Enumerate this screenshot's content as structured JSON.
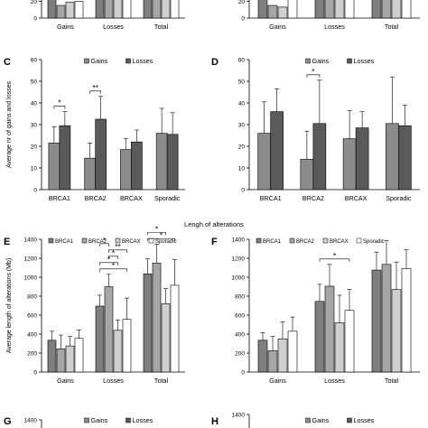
{
  "figure": {
    "section_title": "Lengh of alterations",
    "colors": {
      "brca1": "#7f7f7f",
      "brca2": "#a6a6a6",
      "brcax": "#cfcfcf",
      "sporadic": "#ffffff",
      "gains": "#8c8c8c",
      "losses": "#5a5a5a",
      "axis": "#000000"
    }
  },
  "chart_data": [
    {
      "panel": "top-left-partial",
      "type": "bar",
      "categories": [
        "Gains",
        "Losses",
        "Total"
      ],
      "yticks": [
        0,
        20
      ],
      "ylim": [
        0,
        30
      ],
      "series": [
        {
          "values": [
            22,
            30,
            30
          ]
        },
        {
          "values": [
            15,
            30,
            30
          ]
        },
        {
          "values": [
            19,
            30,
            30
          ]
        },
        {
          "values": [
            20,
            30,
            30
          ]
        }
      ]
    },
    {
      "panel": "top-right-partial",
      "type": "bar",
      "categories": [
        "Gains",
        "Losses",
        "Total"
      ],
      "yticks": [
        0,
        20
      ],
      "ylim": [
        0,
        30
      ],
      "series": [
        {
          "values": [
            30,
            30,
            30
          ]
        },
        {
          "values": [
            15,
            30,
            30
          ]
        },
        {
          "values": [
            13,
            30,
            30
          ]
        },
        {
          "values": [
            30,
            30,
            30
          ]
        }
      ]
    },
    {
      "panel": "C",
      "label": "C",
      "type": "bar",
      "categories": [
        "BRCA1",
        "BRCA2",
        "BRCAX",
        "Sporadic"
      ],
      "ylabel": "Average nr of gains and losses",
      "ylim": [
        0,
        60
      ],
      "yticks": [
        0,
        10,
        20,
        30,
        40,
        50,
        60
      ],
      "legend": [
        "Gains",
        "Losses"
      ],
      "legend_position": "top",
      "series": [
        {
          "name": "Gains",
          "values": [
            21.5,
            14.5,
            18.5,
            26
          ],
          "errors": [
            7.5,
            7,
            5,
            11.5
          ]
        },
        {
          "name": "Losses",
          "values": [
            29.5,
            32.5,
            22,
            25.5
          ],
          "errors": [
            6.5,
            10.5,
            5.5,
            10
          ]
        }
      ],
      "annotations": [
        {
          "category": 0,
          "text": "*"
        },
        {
          "category": 1,
          "text": "**"
        }
      ]
    },
    {
      "panel": "D",
      "label": "D",
      "type": "bar",
      "categories": [
        "BRCA1",
        "BRCA2",
        "BRCAX",
        "Sporadic"
      ],
      "ylim": [
        0,
        60
      ],
      "yticks": [
        0,
        10,
        20,
        30,
        40,
        50,
        60
      ],
      "legend": [
        "Gains",
        "Losses"
      ],
      "legend_position": "top",
      "series": [
        {
          "name": "Gains",
          "values": [
            26,
            14,
            23.5,
            30.5
          ],
          "errors": [
            14.5,
            13,
            13,
            21.5
          ]
        },
        {
          "name": "Losses",
          "values": [
            36,
            30.5,
            28.5,
            29.5
          ],
          "errors": [
            10.5,
            20,
            7.5,
            9.5
          ]
        }
      ],
      "annotations": [
        {
          "category": 1,
          "text": "*"
        }
      ]
    },
    {
      "panel": "E",
      "label": "E",
      "type": "bar",
      "categories": [
        "Gains",
        "Losses",
        "Total"
      ],
      "ylabel": "Average length of alterations (Mb)",
      "ylim": [
        0,
        1400
      ],
      "yticks": [
        0,
        200,
        400,
        600,
        800,
        1000,
        1200,
        1400
      ],
      "legend": [
        "BRCA1",
        "BRCA2",
        "BRCAX",
        "Sporadic"
      ],
      "legend_position": "top",
      "series": [
        {
          "name": "BRCA1",
          "values": [
            335,
            695,
            1035
          ],
          "errors": [
            95,
            115,
            160
          ]
        },
        {
          "name": "BRCA2",
          "values": [
            245,
            900,
            1150
          ],
          "errors": [
            145,
            130,
            200
          ]
        },
        {
          "name": "BRCAX",
          "values": [
            275,
            440,
            720
          ],
          "errors": [
            100,
            110,
            160
          ]
        },
        {
          "name": "Sporadic",
          "values": [
            355,
            555,
            915
          ],
          "errors": [
            90,
            225,
            270
          ]
        }
      ],
      "annotations": [
        {
          "category": 1,
          "text": "*"
        },
        {
          "category": 1,
          "text": "*"
        },
        {
          "category": 1,
          "text": "*"
        },
        {
          "category": 1,
          "text": "**"
        },
        {
          "category": 1,
          "text": "*"
        },
        {
          "category": 2,
          "text": "*"
        },
        {
          "category": 2,
          "text": "*"
        }
      ]
    },
    {
      "panel": "F",
      "label": "F",
      "type": "bar",
      "categories": [
        "Gains",
        "Losses",
        "Total"
      ],
      "ylim": [
        0,
        1400
      ],
      "yticks": [
        0,
        200,
        400,
        600,
        800,
        1000,
        1200,
        1400
      ],
      "legend": [
        "BRCA1",
        "BRCA2",
        "BRCAX",
        "Sporadic"
      ],
      "legend_position": "top",
      "series": [
        {
          "name": "BRCA1",
          "values": [
            335,
            745,
            1075
          ],
          "errors": [
            80,
            180,
            190
          ]
        },
        {
          "name": "BRCA2",
          "values": [
            225,
            905,
            1135
          ],
          "errors": [
            150,
            230,
            250
          ]
        },
        {
          "name": "BRCAX",
          "values": [
            350,
            520,
            870
          ],
          "errors": [
            180,
            290,
            290
          ]
        },
        {
          "name": "Sporadic",
          "values": [
            430,
            650,
            1090
          ],
          "errors": [
            150,
            220,
            200
          ]
        }
      ],
      "annotations": [
        {
          "category": 1,
          "text": "*"
        }
      ]
    },
    {
      "panel": "G",
      "label": "G",
      "type": "bar",
      "categories": [],
      "ylim": [
        0,
        1400
      ],
      "yticks": [
        1400
      ],
      "legend": [
        "Gains",
        "Losses"
      ],
      "legend_position": "top",
      "series": [
        {
          "name": "Gains",
          "values": []
        },
        {
          "name": "Losses",
          "values": []
        }
      ]
    },
    {
      "panel": "H",
      "label": "H",
      "type": "bar",
      "categories": [],
      "ylim": [
        0,
        1400
      ],
      "yticks": [
        1400
      ],
      "legend": [
        "Gains",
        "Losses"
      ],
      "legend_position": "top",
      "series": [
        {
          "name": "Gains",
          "values": []
        },
        {
          "name": "Losses",
          "values": []
        }
      ],
      "annotations": [
        {
          "category": 0,
          "text": "**"
        }
      ]
    }
  ]
}
